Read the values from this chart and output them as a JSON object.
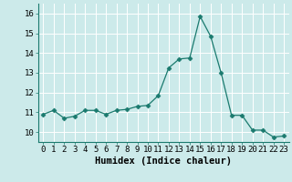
{
  "x": [
    0,
    1,
    2,
    3,
    4,
    5,
    6,
    7,
    8,
    9,
    10,
    11,
    12,
    13,
    14,
    15,
    16,
    17,
    18,
    19,
    20,
    21,
    22,
    23
  ],
  "y": [
    10.9,
    11.1,
    10.7,
    10.8,
    11.1,
    11.1,
    10.9,
    11.1,
    11.15,
    11.3,
    11.35,
    11.85,
    13.25,
    13.7,
    13.75,
    15.85,
    14.85,
    13.0,
    10.85,
    10.85,
    10.1,
    10.1,
    9.75,
    9.8
  ],
  "line_color": "#1a7a6e",
  "marker": "D",
  "marker_size": 2.5,
  "bg_color": "#cceaea",
  "grid_color": "#ffffff",
  "xlabel": "Humidex (Indice chaleur)",
  "xlim": [
    -0.5,
    23.5
  ],
  "ylim": [
    9.5,
    16.5
  ],
  "yticks": [
    10,
    11,
    12,
    13,
    14,
    15,
    16
  ],
  "xticks": [
    0,
    1,
    2,
    3,
    4,
    5,
    6,
    7,
    8,
    9,
    10,
    11,
    12,
    13,
    14,
    15,
    16,
    17,
    18,
    19,
    20,
    21,
    22,
    23
  ],
  "tick_label_size": 6.5,
  "xlabel_size": 7.5
}
